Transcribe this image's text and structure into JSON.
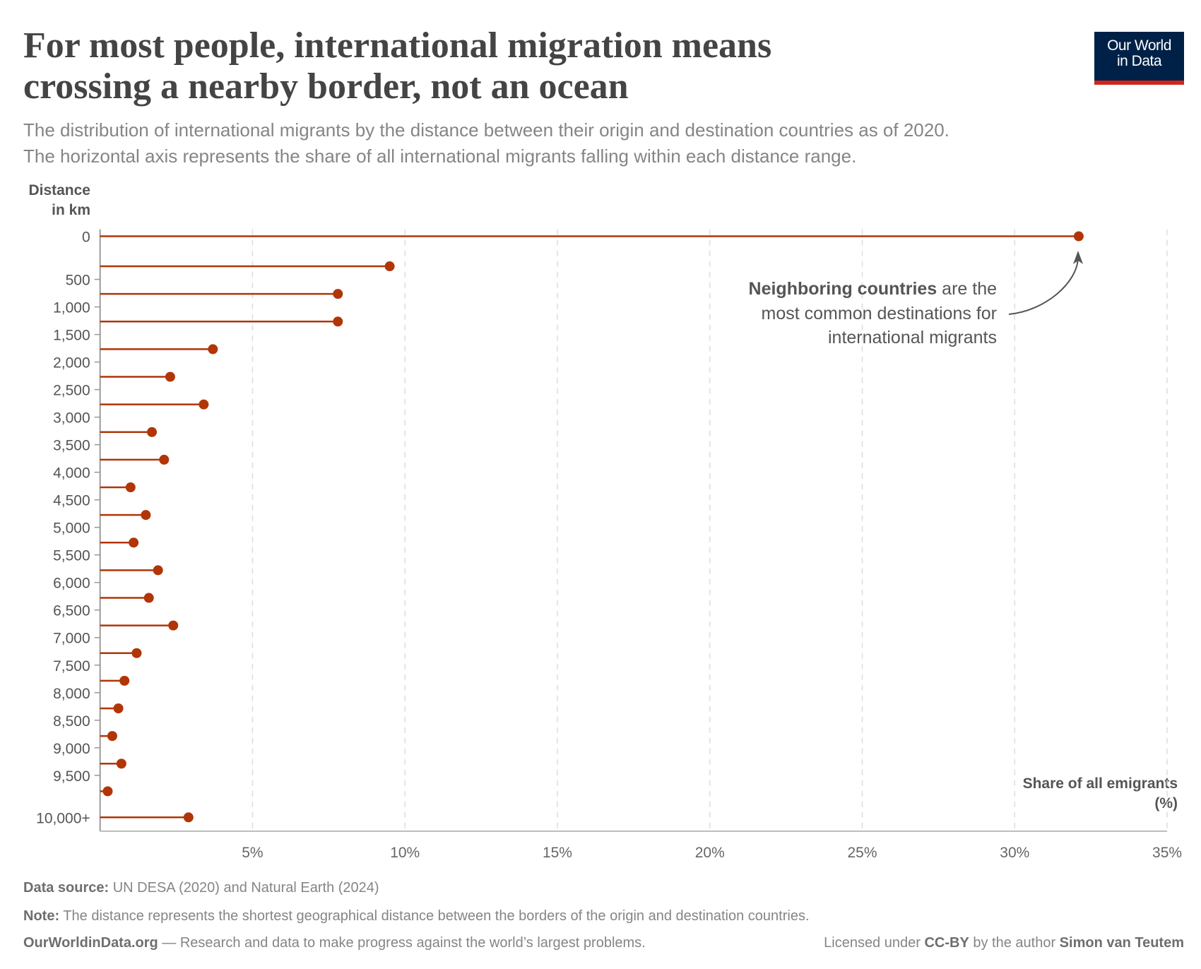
{
  "header": {
    "title": "For most people, international migration means crossing a nearby border, not an ocean",
    "subtitle_line1": "The distribution of international migrants by the distance between their origin and destination countries as of 2020.",
    "subtitle_line2": "The horizontal axis represents the share of all international migrants falling within each distance range.",
    "logo_line1": "Our World",
    "logo_line2": "in Data"
  },
  "colors": {
    "dot": "#b13507",
    "logo_bg": "#002147",
    "logo_accent": "#ce261e",
    "title": "#444444"
  },
  "chart_data": {
    "type": "lollipop",
    "orientation": "horizontal",
    "ylabel_line1": "Distance",
    "ylabel_line2": "in km",
    "xlabel_line1": "Share of all emigrants",
    "xlabel_line2": "(%)",
    "xlim": [
      0,
      35
    ],
    "x_ticks": [
      "5%",
      "10%",
      "15%",
      "20%",
      "25%",
      "30%",
      "35%"
    ],
    "y_ticks": [
      "0",
      "500",
      "1,000",
      "1,500",
      "2,000",
      "2,500",
      "3,000",
      "3,500",
      "4,000",
      "4,500",
      "5,000",
      "5,500",
      "6,000",
      "6,500",
      "7,000",
      "7,500",
      "8,000",
      "8,500",
      "9,000",
      "9,500",
      "10,000+"
    ],
    "grid": "vertical dashed",
    "values": [
      32.1,
      9.5,
      7.8,
      7.8,
      3.7,
      2.3,
      3.4,
      1.7,
      2.1,
      1.0,
      1.5,
      1.1,
      1.9,
      1.6,
      2.4,
      1.2,
      0.8,
      0.6,
      0.4,
      0.7,
      0.25,
      2.9
    ],
    "annotation": {
      "bold": "Neighboring countries",
      "line1_rest": " are the",
      "line2": "most common destinations for",
      "line3": "international migrants"
    }
  },
  "footer": {
    "source_label": "Data source:",
    "source_text": " UN DESA (2020) and Natural Earth (2024)",
    "note_label": "Note:",
    "note_text": " The distance represents the shortest geographical distance between the borders of the origin and destination countries.",
    "site": "OurWorldinData.org",
    "tagline": " — Research and data to make progress against the world’s largest problems.",
    "license_pre": "Licensed under ",
    "license": "CC-BY",
    "license_mid": " by the author ",
    "author": "Simon van Teutem"
  }
}
